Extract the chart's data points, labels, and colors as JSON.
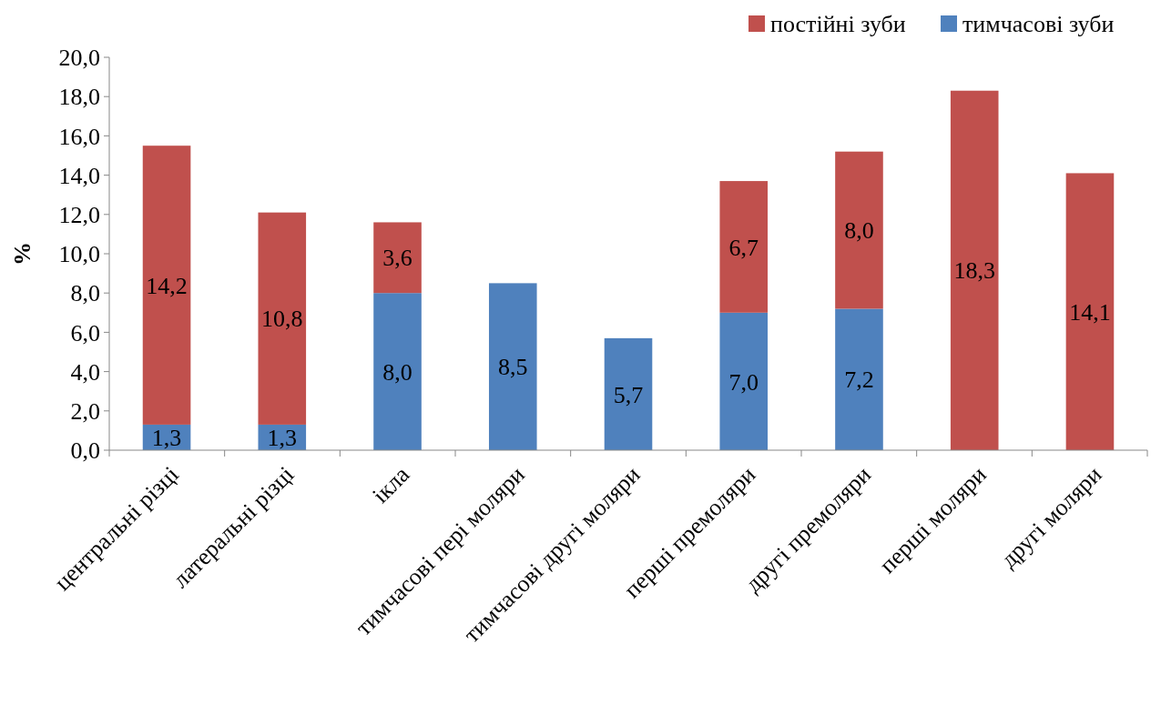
{
  "chart_data": {
    "type": "bar",
    "stacked": true,
    "ylabel": "%",
    "legend": "top right",
    "categories": [
      "центральні різці",
      "латеральні різці",
      "ікла",
      "тимчасові пері моляри",
      "тимчасові другі моляри",
      "перші премоляри",
      "другі премоляри",
      "перші моляри",
      "другі моляри"
    ],
    "series": [
      {
        "name": "тимчасові зуби",
        "color": "#4f81bd",
        "values": [
          1.3,
          1.3,
          8.0,
          8.5,
          5.7,
          7.0,
          7.2,
          null,
          null
        ],
        "value_labels": [
          "1,3",
          "1,3",
          "8,0",
          "8,5",
          "5,7",
          "7,0",
          "7,2",
          null,
          null
        ]
      },
      {
        "name": "постійні зуби",
        "color": "#c0504d",
        "values": [
          14.2,
          10.8,
          3.6,
          null,
          null,
          6.7,
          8.0,
          18.3,
          14.1
        ],
        "value_labels": [
          "14,2",
          "10,8",
          "3,6",
          null,
          null,
          "6,7",
          "8,0",
          "18,3",
          "14,1"
        ]
      }
    ],
    "ylim": [
      0,
      20
    ],
    "yticks": [
      {
        "value": 0,
        "label": "0,0"
      },
      {
        "value": 2,
        "label": "2,0"
      },
      {
        "value": 4,
        "label": "4,0"
      },
      {
        "value": 6,
        "label": "6,0"
      },
      {
        "value": 8,
        "label": "8,0"
      },
      {
        "value": 10,
        "label": "10,0"
      },
      {
        "value": 12,
        "label": "12,0"
      },
      {
        "value": 14,
        "label": "14,0"
      },
      {
        "value": 16,
        "label": "16,0"
      },
      {
        "value": 18,
        "label": "18,0"
      },
      {
        "value": 20,
        "label": "20,0"
      }
    ],
    "grid": false
  }
}
